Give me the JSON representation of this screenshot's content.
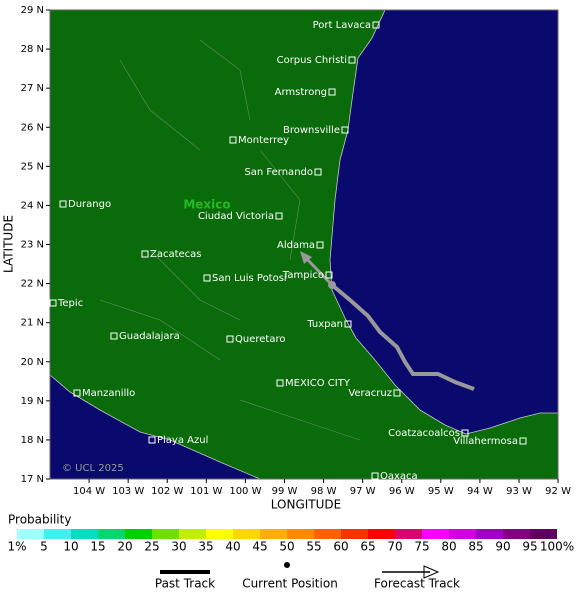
{
  "map": {
    "country_label": "Mexico",
    "copyright": "© UCL 2025",
    "x_axis_label": "LONGITUDE",
    "y_axis_label": "LATITUDE",
    "lat_ticks": [
      "29 N",
      "28 N",
      "27 N",
      "26 N",
      "25 N",
      "24 N",
      "23 N",
      "22 N",
      "21 N",
      "20 N",
      "19 N",
      "18 N",
      "17 N"
    ],
    "lon_ticks": [
      "104 W",
      "103 W",
      "102 W",
      "101 W",
      "100 W",
      "99 W",
      "98 W",
      "97 W",
      "96 W",
      "95 W",
      "94 W",
      "93 W",
      "92 W"
    ],
    "cities": [
      "Port Lavaca",
      "Corpus Christi",
      "Armstrong",
      "Brownsville",
      "Monterrey",
      "San Fernando",
      "Durango",
      "Ciudad Victoria",
      "Aldama",
      "Zacatecas",
      "Tampico",
      "San Luis Potosi",
      "Tepic",
      "Tuxpan",
      "Guadalajara",
      "Queretaro",
      "MEXICO CITY",
      "Veracruz",
      "Manzanillo",
      "Playa Azul",
      "Coatzacoalcos",
      "Villahermosa",
      "Oaxaca"
    ]
  },
  "legend": {
    "title": "Probability",
    "labels": [
      "1%",
      "5",
      "10",
      "15",
      "20",
      "25",
      "30",
      "35",
      "40",
      "45",
      "50",
      "55",
      "60",
      "65",
      "70",
      "75",
      "80",
      "85",
      "90",
      "95",
      "100%"
    ],
    "colors": [
      "#a0ffff",
      "#40f0f0",
      "#00e0c0",
      "#00d870",
      "#00d000",
      "#70e000",
      "#c0f000",
      "#ffff00",
      "#ffd800",
      "#ffb000",
      "#ff8c00",
      "#ff6000",
      "#ff3000",
      "#ff0000",
      "#e0006e",
      "#ff00ff",
      "#d000e0",
      "#a000c0",
      "#800080",
      "#600060"
    ],
    "items": [
      "Past Track",
      "Current Position",
      "Forecast Track"
    ]
  }
}
